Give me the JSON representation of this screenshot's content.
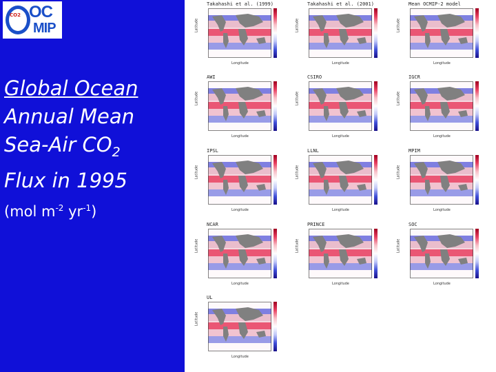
{
  "logo": {
    "sub": "CO2",
    "line1": "OC",
    "line2": "MIP"
  },
  "title": {
    "line1": "Global Ocean",
    "line2": "Annual Mean",
    "line3_pre": "Sea-Air CO",
    "line3_sub": "2",
    "line4": "Flux in 1995",
    "unit_pre": "(mol m",
    "unit_exp1": "-2",
    "unit_mid": " yr",
    "unit_exp2": "-1",
    "unit_post": ")"
  },
  "axes": {
    "ylabel": "Latitude",
    "xlabel": "Longitude"
  },
  "panels": [
    {
      "name": "Takahashi et al. (1999)"
    },
    {
      "name": "Takahashi et al. (2001)"
    },
    {
      "name": "Mean OCMIP-2 model"
    },
    {
      "name": "AWI"
    },
    {
      "name": "CSIRO"
    },
    {
      "name": "IGCR"
    },
    {
      "name": "IPSL"
    },
    {
      "name": "LLNL"
    },
    {
      "name": "MPIM"
    },
    {
      "name": "NCAR"
    },
    {
      "name": "PRINCE"
    },
    {
      "name": "SOC"
    },
    {
      "name": "UL"
    }
  ],
  "colors": {
    "background": "#1010d8",
    "text": "#ffffff",
    "positive": "#e84060",
    "negative": "#4050d8",
    "land": "#808080"
  }
}
